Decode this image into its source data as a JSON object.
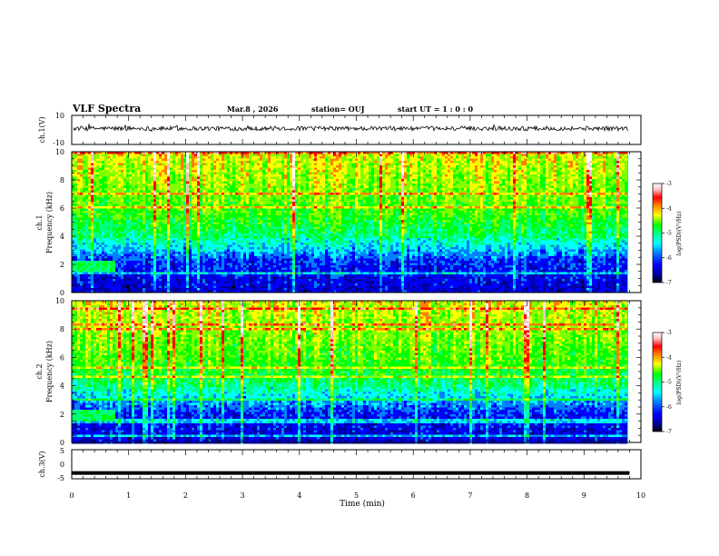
{
  "header": {
    "title": "VLF Spectra",
    "date": "Mar.8 , 2026",
    "station": "station= OUJ",
    "start_ut": "start UT = 1 : 0 : 0"
  },
  "chart_data": [
    {
      "type": "line",
      "ylabel": "ch.1(V)",
      "ylim": [
        -10,
        10
      ],
      "yticks": [
        "10",
        "-10"
      ],
      "xlim": [
        0,
        10
      ],
      "description_values": {
        "baseline": 1,
        "noise_amplitude": 1.5
      }
    },
    {
      "type": "heatmap",
      "ylabel": [
        "ch.1",
        "Frequency (kHz)"
      ],
      "ylim": [
        0,
        10
      ],
      "yticks": [
        "0",
        "2",
        "4",
        "6",
        "8",
        "10"
      ],
      "xlim": [
        0,
        10
      ],
      "colorbar": {
        "label": "log(PSD)(V²/Hz)",
        "range": [
          -7,
          -3
        ],
        "ticks": [
          "-3",
          "-4",
          "-5",
          "-6",
          "-7"
        ]
      }
    },
    {
      "type": "heatmap",
      "ylabel": [
        "ch.2",
        "Frequency (kHz)"
      ],
      "ylim": [
        0,
        10
      ],
      "yticks": [
        "0",
        "2",
        "4",
        "6",
        "8",
        "10"
      ],
      "xlim": [
        0,
        10
      ],
      "colorbar": {
        "label": "log(PSD)(V²/Hz)",
        "range": [
          -7,
          -3
        ],
        "ticks": [
          "-3",
          "-4",
          "-5",
          "-6",
          "-7"
        ]
      }
    },
    {
      "type": "line",
      "ylabel": "ch.3(V)",
      "ylim": [
        -5,
        5
      ],
      "yticks": [
        "5",
        "0",
        "-5"
      ],
      "xlim": [
        0,
        10
      ],
      "xlabel": "Time (min)",
      "xticks": [
        "0",
        "1",
        "2",
        "3",
        "4",
        "5",
        "6",
        "7",
        "8",
        "9",
        "10"
      ],
      "x": [
        0,
        9.8
      ],
      "y": [
        -3,
        -3
      ]
    }
  ],
  "colors": {
    "colormap": [
      "#000000",
      "#0000a0",
      "#0000ff",
      "#0080ff",
      "#00ffff",
      "#00ff80",
      "#00ff00",
      "#80ff00",
      "#ffff00",
      "#ff8000",
      "#ff0000",
      "#ffc0c0",
      "#ffffff"
    ]
  }
}
